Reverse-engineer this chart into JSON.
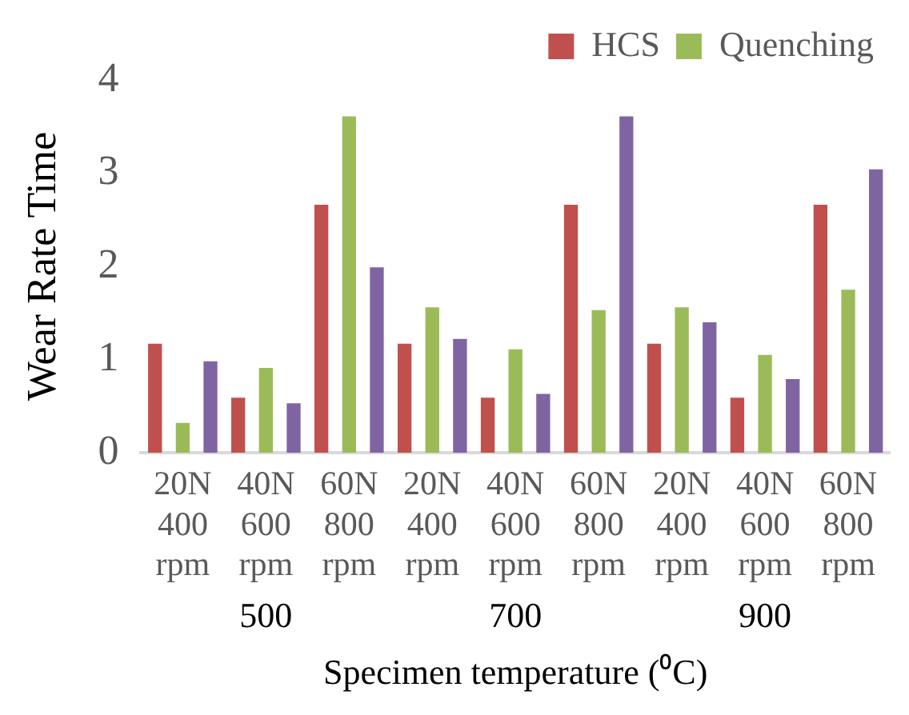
{
  "chart_data": {
    "type": "bar",
    "xlabel": "Specimen temperature (⁰C)",
    "ylabel": "Wear Rate Time",
    "categories": [
      "20N 400 rpm",
      "40N 600 rpm",
      "60N 800 rpm",
      "20N 400 rpm",
      "40N 600 rpm",
      "60N 800 rpm",
      "20N 400 rpm",
      "40N 600 rpm",
      "60N 800 rpm"
    ],
    "series": [
      {
        "name": "HCS",
        "color": "#c0504d",
        "values": [
          1.17,
          0.59,
          2.66,
          1.17,
          0.59,
          2.66,
          1.17,
          0.59,
          2.66
        ]
      },
      {
        "name": "Quenching",
        "color": "#9bbb59",
        "values": [
          0.32,
          0.91,
          3.61,
          1.56,
          1.11,
          1.53,
          1.56,
          1.05,
          1.75
        ]
      },
      {
        "color": "#8064a2",
        "values": [
          0.98,
          0.53,
          1.99,
          1.22,
          0.63,
          3.61,
          1.4,
          0.79,
          3.04
        ]
      }
    ],
    "annotations": [
      "500",
      "700",
      "900"
    ],
    "ylim": [
      0,
      4
    ],
    "yticks": [
      0,
      1,
      2,
      3,
      4
    ],
    "grid": false,
    "legend": "top right"
  }
}
